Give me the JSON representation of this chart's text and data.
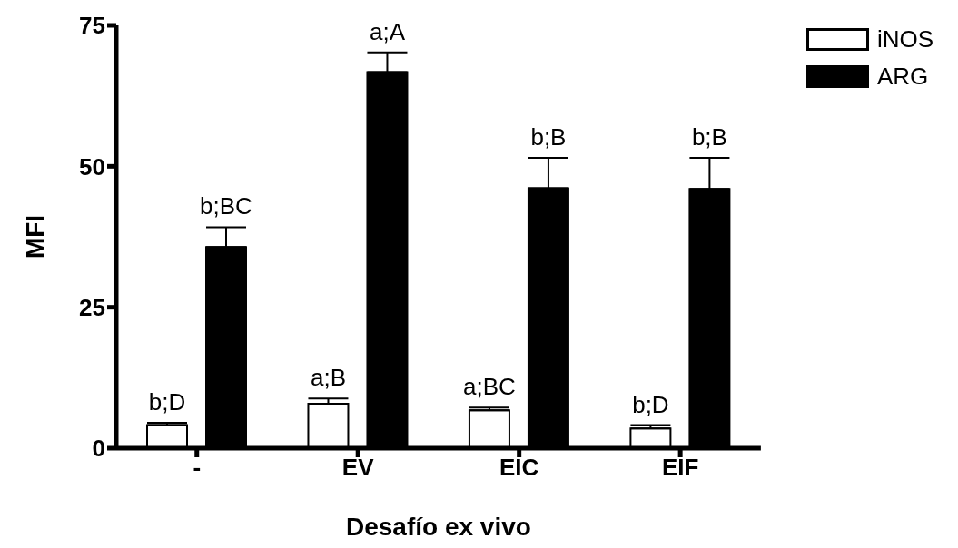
{
  "chart_data": {
    "type": "bar",
    "xlabel": "Desafío ex vivo",
    "ylabel": "MFI",
    "categories": [
      "-",
      "EV",
      "EIC",
      "EIF"
    ],
    "series": [
      {
        "name": "iNOS",
        "color": "#ffffff",
        "values": [
          4.1,
          7.9,
          6.7,
          3.5
        ],
        "errors": [
          [
            4.1,
            4.5
          ],
          [
            7.9,
            8.8
          ],
          [
            6.7,
            7.2
          ],
          [
            3.5,
            4.1
          ]
        ],
        "value_labels": [
          "b;D",
          "a;B",
          "a;BC",
          "b;D"
        ]
      },
      {
        "name": "ARG",
        "color": "#000000",
        "values": [
          35.7,
          66.7,
          46.1,
          46.0
        ],
        "errors": [
          [
            35.7,
            39.2
          ],
          [
            66.7,
            70.2
          ],
          [
            46.1,
            51.5
          ],
          [
            46.0,
            51.5
          ]
        ],
        "value_labels": [
          "b;BC",
          "a;A",
          "b;B",
          "b;B"
        ]
      }
    ],
    "ylim": [
      0,
      75
    ],
    "yticks": [
      0,
      25,
      50,
      75
    ],
    "legend": "top right"
  }
}
